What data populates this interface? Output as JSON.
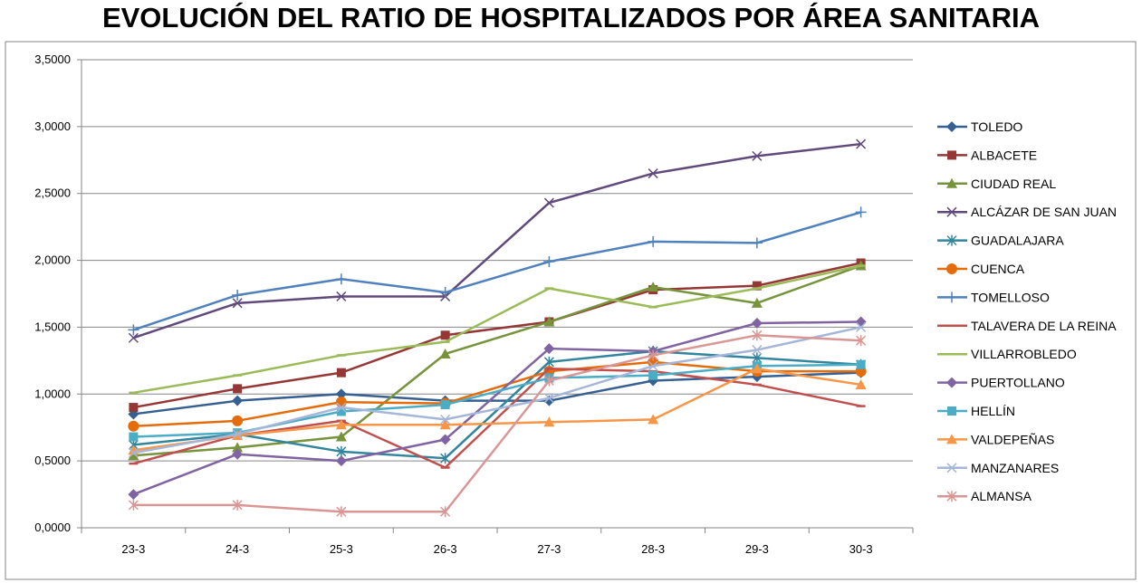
{
  "chart_data": {
    "type": "line",
    "title": "EVOLUCIÓN DEL RATIO DE HOSPITALIZADOS POR ÁREA SANITARIA",
    "xlabel": "",
    "ylabel": "",
    "categories": [
      "23-3",
      "24-3",
      "25-3",
      "26-3",
      "27-3",
      "28-3",
      "29-3",
      "30-3"
    ],
    "ylim": [
      0,
      3.5
    ],
    "yticks": [
      "0,0000",
      "0,5000",
      "1,0000",
      "1,5000",
      "2,0000",
      "2,5000",
      "3,0000",
      "3,5000"
    ],
    "grid": true,
    "legend_position": "right",
    "series": [
      {
        "name": "TOLEDO",
        "color": "#376092",
        "marker": "diamond",
        "values": [
          0.85,
          0.95,
          1.0,
          0.95,
          0.95,
          1.1,
          1.13,
          1.16
        ]
      },
      {
        "name": "ALBACETE",
        "color": "#953735",
        "marker": "square",
        "values": [
          0.9,
          1.04,
          1.16,
          1.44,
          1.54,
          1.78,
          1.81,
          1.98
        ]
      },
      {
        "name": "CIUDAD REAL",
        "color": "#77933C",
        "marker": "triangle",
        "values": [
          0.54,
          0.6,
          0.68,
          1.3,
          1.54,
          1.8,
          1.68,
          1.96
        ]
      },
      {
        "name": "ALCÁZAR DE SAN JUAN",
        "color": "#604A7B",
        "marker": "x",
        "values": [
          1.42,
          1.68,
          1.73,
          1.73,
          2.43,
          2.65,
          2.78,
          2.87
        ]
      },
      {
        "name": "GUADALAJARA",
        "color": "#31859C",
        "marker": "asterisk",
        "values": [
          0.62,
          0.7,
          0.57,
          0.52,
          1.24,
          1.32,
          1.27,
          1.22
        ]
      },
      {
        "name": "CUENCA",
        "color": "#E46C0A",
        "marker": "circle",
        "values": [
          0.76,
          0.8,
          0.94,
          0.93,
          1.17,
          1.24,
          1.17,
          1.17
        ]
      },
      {
        "name": "TOMELLOSO",
        "color": "#4F81BD",
        "marker": "plus",
        "values": [
          1.48,
          1.74,
          1.86,
          1.76,
          1.99,
          2.14,
          2.13,
          2.36
        ]
      },
      {
        "name": "TALAVERA DE LA REINA",
        "color": "#C0504D",
        "marker": "dash",
        "values": [
          0.48,
          0.69,
          0.8,
          0.45,
          1.19,
          1.17,
          1.07,
          0.91
        ]
      },
      {
        "name": "VILLARROBLEDO",
        "color": "#9BBB59",
        "marker": "dash",
        "values": [
          1.01,
          1.14,
          1.29,
          1.39,
          1.79,
          1.65,
          1.79,
          1.96
        ]
      },
      {
        "name": "PUERTOLLANO",
        "color": "#8064A2",
        "marker": "diamond",
        "values": [
          0.25,
          0.55,
          0.5,
          0.66,
          1.34,
          1.32,
          1.53,
          1.54
        ]
      },
      {
        "name": "HELLÍN",
        "color": "#4BACC6",
        "marker": "square",
        "values": [
          0.68,
          0.71,
          0.87,
          0.92,
          1.12,
          1.14,
          1.21,
          1.22
        ]
      },
      {
        "name": "VALDEPEÑAS",
        "color": "#F79646",
        "marker": "triangle",
        "values": [
          0.58,
          0.69,
          0.77,
          0.77,
          0.79,
          0.81,
          1.19,
          1.07
        ]
      },
      {
        "name": "MANZANARES",
        "color": "#A5B6D8",
        "marker": "x",
        "values": [
          0.56,
          0.7,
          0.9,
          0.81,
          0.97,
          1.21,
          1.33,
          1.5
        ]
      },
      {
        "name": "ALMANSA",
        "color": "#D99694",
        "marker": "asterisk",
        "values": [
          0.17,
          0.17,
          0.12,
          0.12,
          1.1,
          1.29,
          1.44,
          1.4
        ]
      }
    ]
  }
}
